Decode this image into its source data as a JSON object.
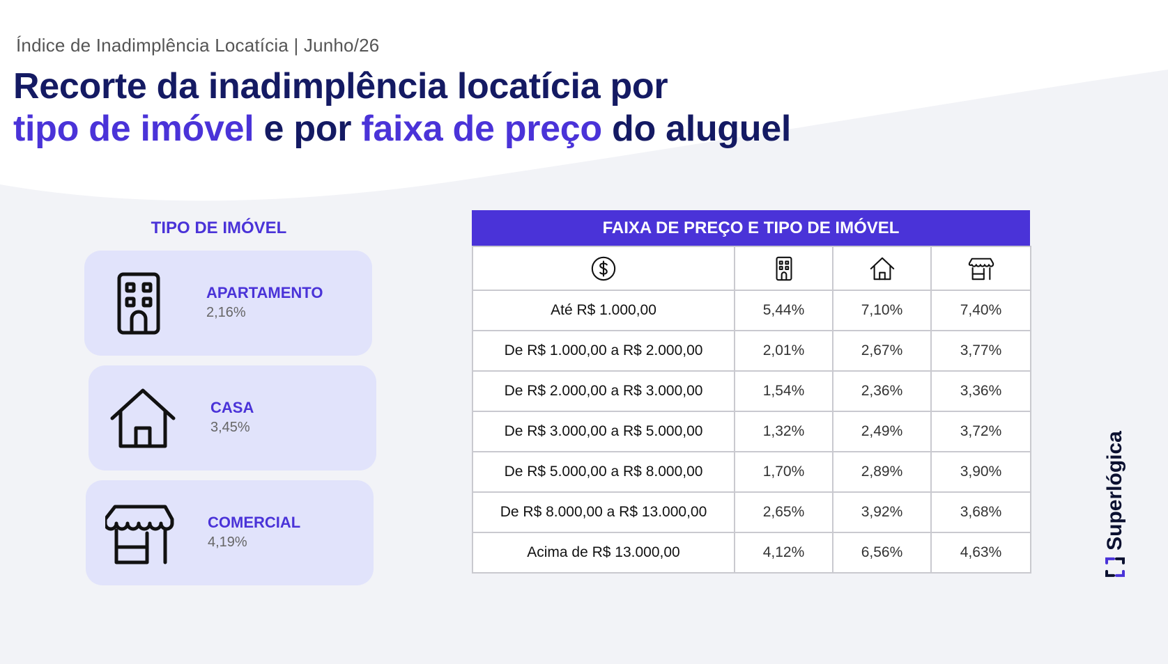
{
  "header": {
    "subtitle": "Índice de Inadimplência Locatícia | Junho/26",
    "title_line1": "Recorte da inadimplência locatícia por",
    "title_hl1": "tipo de imóvel",
    "title_mid": " e por ",
    "title_hl2": "faixa de preço",
    "title_end": " do aluguel"
  },
  "property_types": {
    "heading": "TIPO DE IMÓVEL",
    "items": [
      {
        "label": "APARTAMENTO",
        "value": "2,16%",
        "icon": "building-icon"
      },
      {
        "label": "CASA",
        "value": "3,45%",
        "icon": "house-icon"
      },
      {
        "label": "COMERCIAL",
        "value": "4,19%",
        "icon": "storefront-icon"
      }
    ]
  },
  "price_table": {
    "title": "FAIXA DE PREÇO E TIPO DE IMÓVEL",
    "column_icons": [
      "dollar-icon",
      "building-icon",
      "house-icon",
      "storefront-icon"
    ],
    "rows": [
      {
        "range": "Até R$ 1.000,00",
        "apartamento": "5,44%",
        "casa": "7,10%",
        "comercial": "7,40%"
      },
      {
        "range": "De R$ 1.000,00 a R$ 2.000,00",
        "apartamento": "2,01%",
        "casa": "2,67%",
        "comercial": "3,77%"
      },
      {
        "range": "De R$ 2.000,00 a R$ 3.000,00",
        "apartamento": "1,54%",
        "casa": "2,36%",
        "comercial": "3,36%"
      },
      {
        "range": "De R$ 3.000,00 a R$ 5.000,00",
        "apartamento": "1,32%",
        "casa": "2,49%",
        "comercial": "3,72%"
      },
      {
        "range": "De R$ 5.000,00 a R$ 8.000,00",
        "apartamento": "1,70%",
        "casa": "2,89%",
        "comercial": "3,90%"
      },
      {
        "range": "De R$ 8.000,00 a R$ 13.000,00",
        "apartamento": "2,65%",
        "casa": "3,92%",
        "comercial": "3,68%"
      },
      {
        "range": "Acima de R$ 13.000,00",
        "apartamento": "4,12%",
        "casa": "6,56%",
        "comercial": "4,63%"
      }
    ]
  },
  "brand": {
    "name": "Superlógica",
    "logo": "superlogica-logo-icon"
  },
  "colors": {
    "accent": "#4a33d8",
    "title": "#141a63",
    "card": "#e1e3fb",
    "background": "#f2f3f7"
  }
}
